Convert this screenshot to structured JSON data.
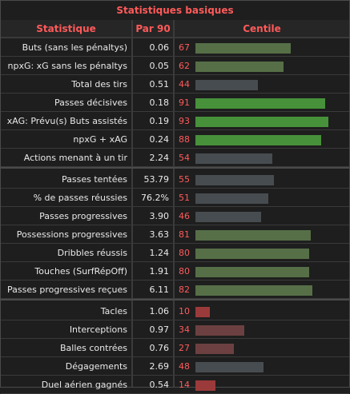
{
  "title": "Statistiques basiques",
  "headers": {
    "stat": "Statistique",
    "per90": "Par 90",
    "pct": "Centile"
  },
  "colors": {
    "accent": "#ff5a5a",
    "high": "#47913a",
    "upper": "#566f47",
    "mid": "#474c50",
    "low": "#6c4040",
    "verylow": "#9b3a3a"
  },
  "groups": [
    {
      "rows": [
        {
          "stat": "Buts (sans les pénaltys)",
          "per90": "0.06",
          "pct": "67"
        },
        {
          "stat": "npxG: xG sans les pénaltys",
          "per90": "0.05",
          "pct": "62"
        },
        {
          "stat": "Total des tirs",
          "per90": "0.51",
          "pct": "44"
        },
        {
          "stat": "Passes décisives",
          "per90": "0.18",
          "pct": "91"
        },
        {
          "stat": "xAG: Prévu(s) Buts assistés",
          "per90": "0.19",
          "pct": "93"
        },
        {
          "stat": "npxG + xAG",
          "per90": "0.24",
          "pct": "88"
        },
        {
          "stat": "Actions menant à un tir",
          "per90": "2.24",
          "pct": "54"
        }
      ]
    },
    {
      "rows": [
        {
          "stat": "Passes tentées",
          "per90": "53.79",
          "pct": "55"
        },
        {
          "stat": "% de passes réussies",
          "per90": "76.2%",
          "pct": "51"
        },
        {
          "stat": "Passes progressives",
          "per90": "3.90",
          "pct": "46"
        },
        {
          "stat": "Possessions progressives",
          "per90": "3.63",
          "pct": "81"
        },
        {
          "stat": "Dribbles réussis",
          "per90": "1.24",
          "pct": "80"
        },
        {
          "stat": "Touches (SurfRépOff)",
          "per90": "1.91",
          "pct": "80"
        },
        {
          "stat": "Passes progressives reçues",
          "per90": "6.11",
          "pct": "82"
        }
      ]
    },
    {
      "rows": [
        {
          "stat": "Tacles",
          "per90": "1.06",
          "pct": "10"
        },
        {
          "stat": "Interceptions",
          "per90": "0.97",
          "pct": "34"
        },
        {
          "stat": "Balles contrées",
          "per90": "0.76",
          "pct": "27"
        },
        {
          "stat": "Dégagements",
          "per90": "2.69",
          "pct": "48"
        },
        {
          "stat": "Duel aérien gagnés",
          "per90": "0.54",
          "pct": "14"
        }
      ]
    }
  ]
}
